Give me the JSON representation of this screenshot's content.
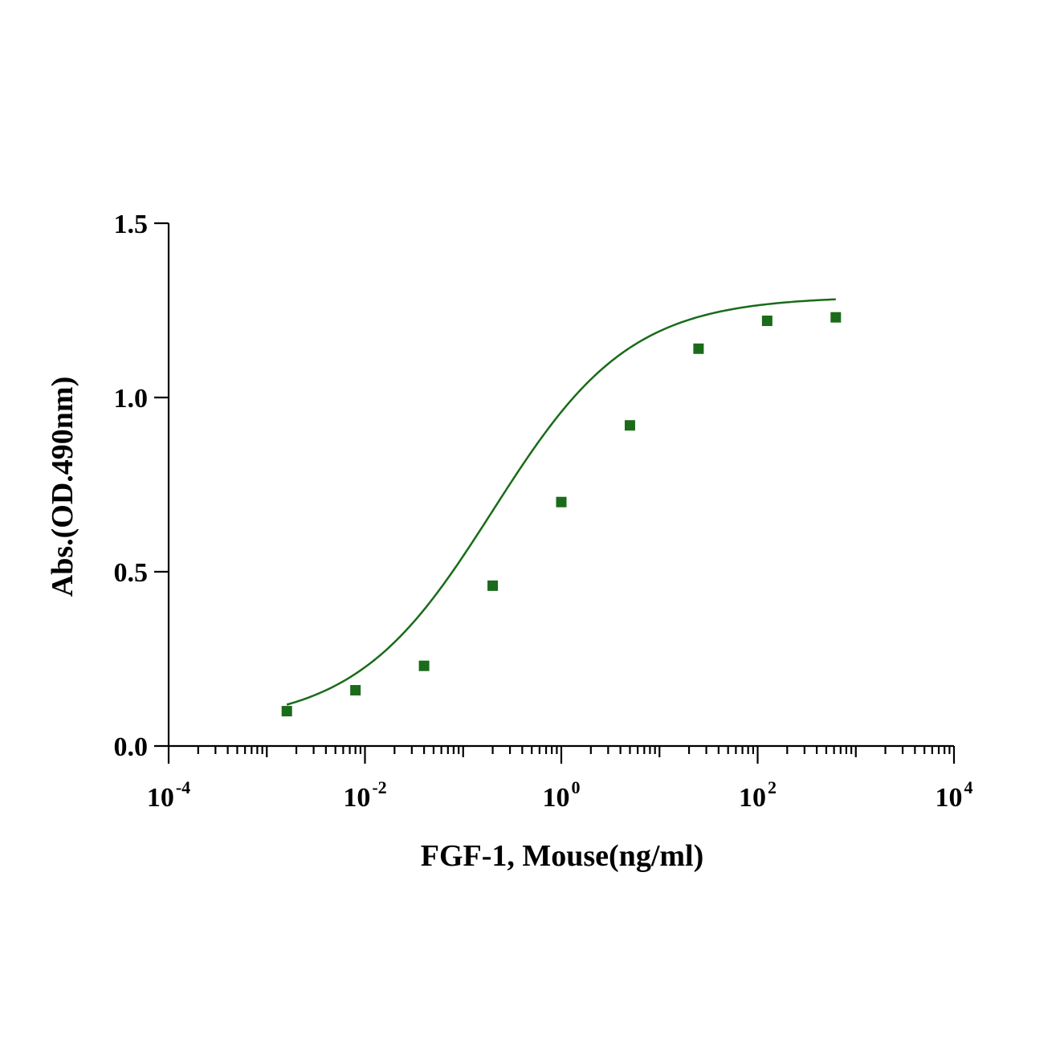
{
  "chart_data": {
    "type": "scatter",
    "xlabel": "FGF-1, Mouse(ng/ml)",
    "ylabel": "Abs.(OD.490nm)",
    "x_scale": "log10",
    "xlim": [
      0.0001,
      10000
    ],
    "ylim": [
      0,
      1.5
    ],
    "x_ticks": [
      {
        "base": "10",
        "exp": "-4",
        "value": 0.0001
      },
      {
        "base": "10",
        "exp": "-2",
        "value": 0.01
      },
      {
        "base": "10",
        "exp": "0",
        "value": 1
      },
      {
        "base": "10",
        "exp": "2",
        "value": 100
      },
      {
        "base": "10",
        "exp": "4",
        "value": 10000
      }
    ],
    "y_ticks": [
      "0.0",
      "0.5",
      "1.0",
      "1.5"
    ],
    "grid": false,
    "legend": "none",
    "series": [
      {
        "marker": "square",
        "color": "#1a6b1a",
        "x": [
          0.0016,
          0.008,
          0.04,
          0.2,
          1,
          5,
          25,
          125,
          625
        ],
        "y": [
          0.1,
          0.16,
          0.23,
          0.46,
          0.7,
          0.92,
          1.14,
          1.22,
          1.23
        ]
      }
    ],
    "fit_curve": {
      "type": "four-parameter-logistic",
      "color": "#1a6b1a",
      "bottom": 0.06,
      "top": 1.29,
      "ec50": 0.2,
      "hill": 0.62
    }
  }
}
